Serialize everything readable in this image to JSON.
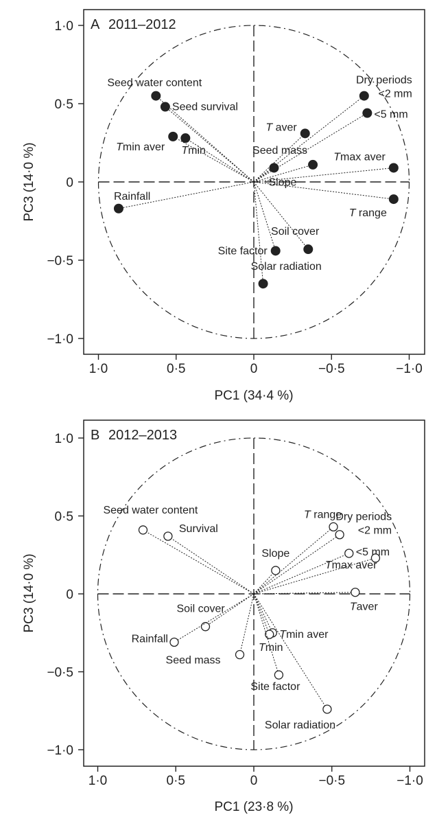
{
  "colors": {
    "ink": "#222222",
    "background": "#ffffff"
  },
  "chart_data": [
    {
      "type": "scatter",
      "panel": "A",
      "title": "2011–2012",
      "xlabel": "PC1 (34·4 %)",
      "ylabel": "PC3 (14·0 %)",
      "xlim": [
        1.1,
        -1.1
      ],
      "ylim": [
        -1.1,
        1.1
      ],
      "x_reversed": true,
      "xticks": [
        "1·0",
        "0·5",
        "0",
        "−0·5",
        "−1·0"
      ],
      "yticks": [
        "1·0",
        "0·5",
        "0",
        "−0·5",
        "−1·0"
      ],
      "marker": "filled-circle",
      "unit_circle": true,
      "points": [
        {
          "label": "Seed water content",
          "x": 0.63,
          "y": 0.55
        },
        {
          "label": "Seed survival",
          "x": 0.57,
          "y": 0.48
        },
        {
          "label": "Tmin aver",
          "x": 0.52,
          "y": 0.29
        },
        {
          "label": "Tmin",
          "x": 0.44,
          "y": 0.28
        },
        {
          "label": "Rainfall",
          "x": 0.87,
          "y": -0.17
        },
        {
          "label": "Dry periods <2 mm",
          "x": -0.71,
          "y": 0.55
        },
        {
          "label": "<5 mm",
          "x": -0.73,
          "y": 0.44
        },
        {
          "label": "T aver",
          "x": -0.33,
          "y": 0.31
        },
        {
          "label": "Seed mass",
          "x": -0.38,
          "y": 0.11
        },
        {
          "label": "Slope",
          "x": -0.13,
          "y": 0.09
        },
        {
          "label": "Tmax aver",
          "x": -0.9,
          "y": 0.09
        },
        {
          "label": "T range",
          "x": -0.9,
          "y": -0.11
        },
        {
          "label": "Soil cover",
          "x": -0.35,
          "y": -0.43
        },
        {
          "label": "Site factor",
          "x": -0.14,
          "y": -0.44
        },
        {
          "label": "Solar radiation",
          "x": -0.06,
          "y": -0.65
        }
      ]
    },
    {
      "type": "scatter",
      "panel": "B",
      "title": "2012–2013",
      "xlabel": "PC1 (23·8 %)",
      "ylabel": "PC3 (14·0 %)",
      "xlim": [
        1.1,
        -1.1
      ],
      "ylim": [
        -1.1,
        1.1
      ],
      "x_reversed": true,
      "xticks": [
        "1·0",
        "0·5",
        "0",
        "−0·5",
        "−1·0"
      ],
      "yticks": [
        "1·0",
        "0·5",
        "0",
        "−0·5",
        "−1·0"
      ],
      "marker": "open-circle",
      "unit_circle": true,
      "points": [
        {
          "label": "Seed water content",
          "x": 0.71,
          "y": 0.41
        },
        {
          "label": "Survival",
          "x": 0.55,
          "y": 0.37
        },
        {
          "label": "Soil cover",
          "x": 0.31,
          "y": -0.21
        },
        {
          "label": "Rainfall",
          "x": 0.51,
          "y": -0.31
        },
        {
          "label": "Seed mass",
          "x": 0.09,
          "y": -0.39
        },
        {
          "label": "Slope",
          "x": -0.14,
          "y": 0.15
        },
        {
          "label": "T range",
          "x": -0.51,
          "y": 0.43
        },
        {
          "label": "Dry periods <2 mm",
          "x": -0.55,
          "y": 0.38
        },
        {
          "label": "<5 mm",
          "x": -0.61,
          "y": 0.26
        },
        {
          "label": "Tmax aver",
          "x": -0.78,
          "y": 0.23
        },
        {
          "label": "Taver",
          "x": -0.65,
          "y": 0.01
        },
        {
          "label": "Tmin aver",
          "x": -0.12,
          "y": -0.25
        },
        {
          "label": "Tmin",
          "x": -0.1,
          "y": -0.26
        },
        {
          "label": "Site factor",
          "x": -0.16,
          "y": -0.52
        },
        {
          "label": "Solar radiation",
          "x": -0.47,
          "y": -0.74
        }
      ]
    }
  ]
}
